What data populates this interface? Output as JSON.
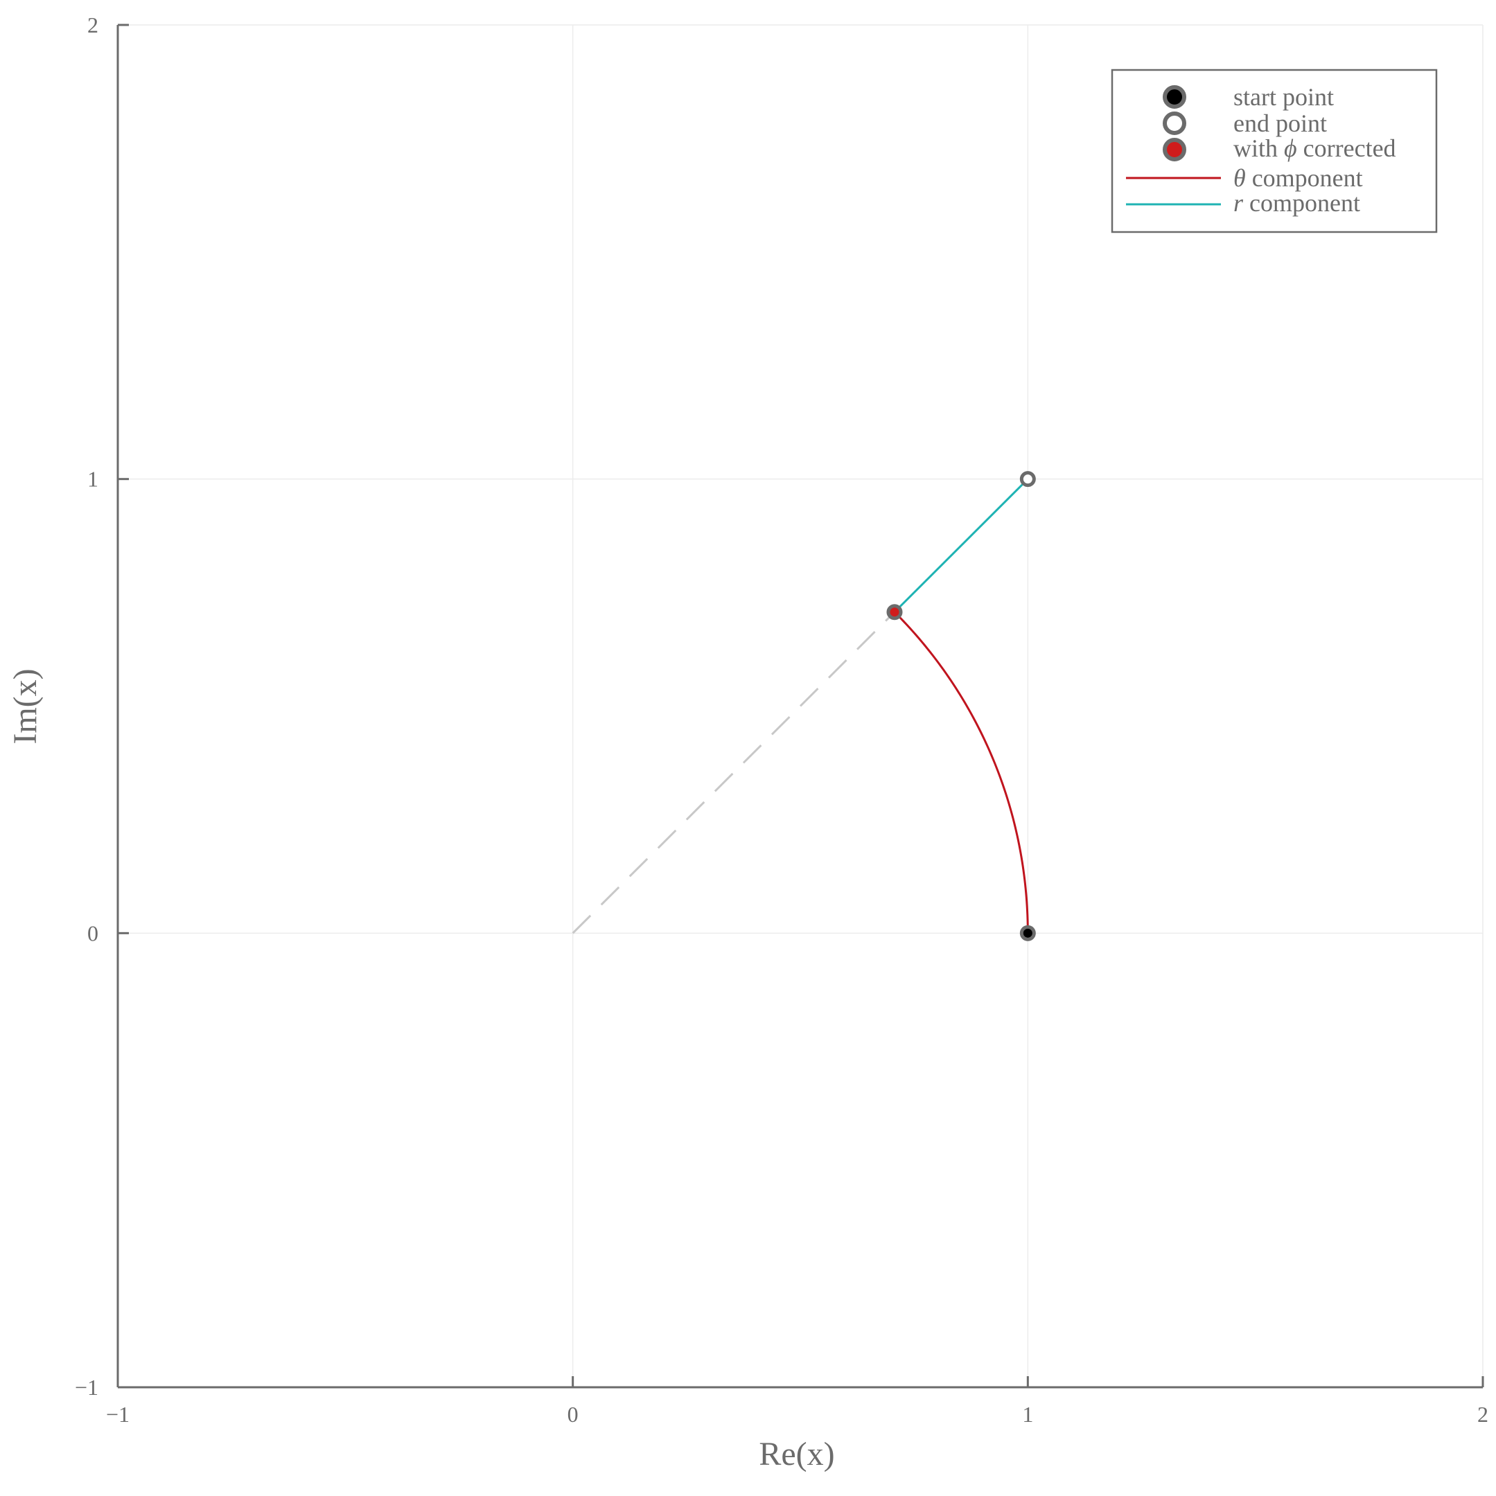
{
  "chart_data": {
    "type": "line",
    "xlabel": "Re(x)",
    "ylabel": "Im(x)",
    "xlim": [
      -1,
      2
    ],
    "ylim": [
      -1,
      2
    ],
    "xticks": [
      -1,
      0,
      1,
      2
    ],
    "yticks": [
      -1,
      0,
      1,
      2
    ],
    "xtick_labels": [
      "−1",
      "0",
      "1",
      "2"
    ],
    "ytick_labels": [
      "−1",
      "0",
      "1",
      "2"
    ],
    "grid": true,
    "legend_position": "top-right",
    "points": {
      "start": {
        "x": 1,
        "y": 0
      },
      "end": {
        "x": 1,
        "y": 1
      },
      "phi_corrected": {
        "x": 0.7071,
        "y": 0.7071
      }
    },
    "series": [
      {
        "name": "θ component",
        "kind": "arc",
        "radius": 1,
        "theta_from_deg": 0,
        "theta_to_deg": 45,
        "color": "#c0141e"
      },
      {
        "name": "r component",
        "kind": "segment",
        "x": [
          0.7071,
          1
        ],
        "y": [
          0.7071,
          1
        ],
        "color": "#1fb3b3"
      },
      {
        "name": "",
        "kind": "dashed-ray",
        "x": [
          0,
          0.7071
        ],
        "y": [
          0,
          0.7071
        ],
        "color": "#c8c8c8"
      }
    ],
    "legend": [
      {
        "label": "start point",
        "marker": "filled-black"
      },
      {
        "label": "end point",
        "marker": "hollow"
      },
      {
        "label_prefix": "with ",
        "label_symbol": "ϕ",
        "label_suffix": " corrected",
        "marker": "filled-red"
      },
      {
        "label_symbol": "θ",
        "label_suffix": " component",
        "line_color": "#c0141e"
      },
      {
        "label_symbol": "r",
        "label_suffix": " component",
        "line_color": "#1fb3b3"
      }
    ],
    "colors": {
      "axis": "#6b6b6b",
      "grid": "#ececec",
      "theta": "#c0141e",
      "r": "#1fb3b3",
      "dashed": "#c8c8c8",
      "marker_edge": "#6b6b6b",
      "start_fill": "#000000",
      "phi_fill": "#d01c1c"
    }
  }
}
